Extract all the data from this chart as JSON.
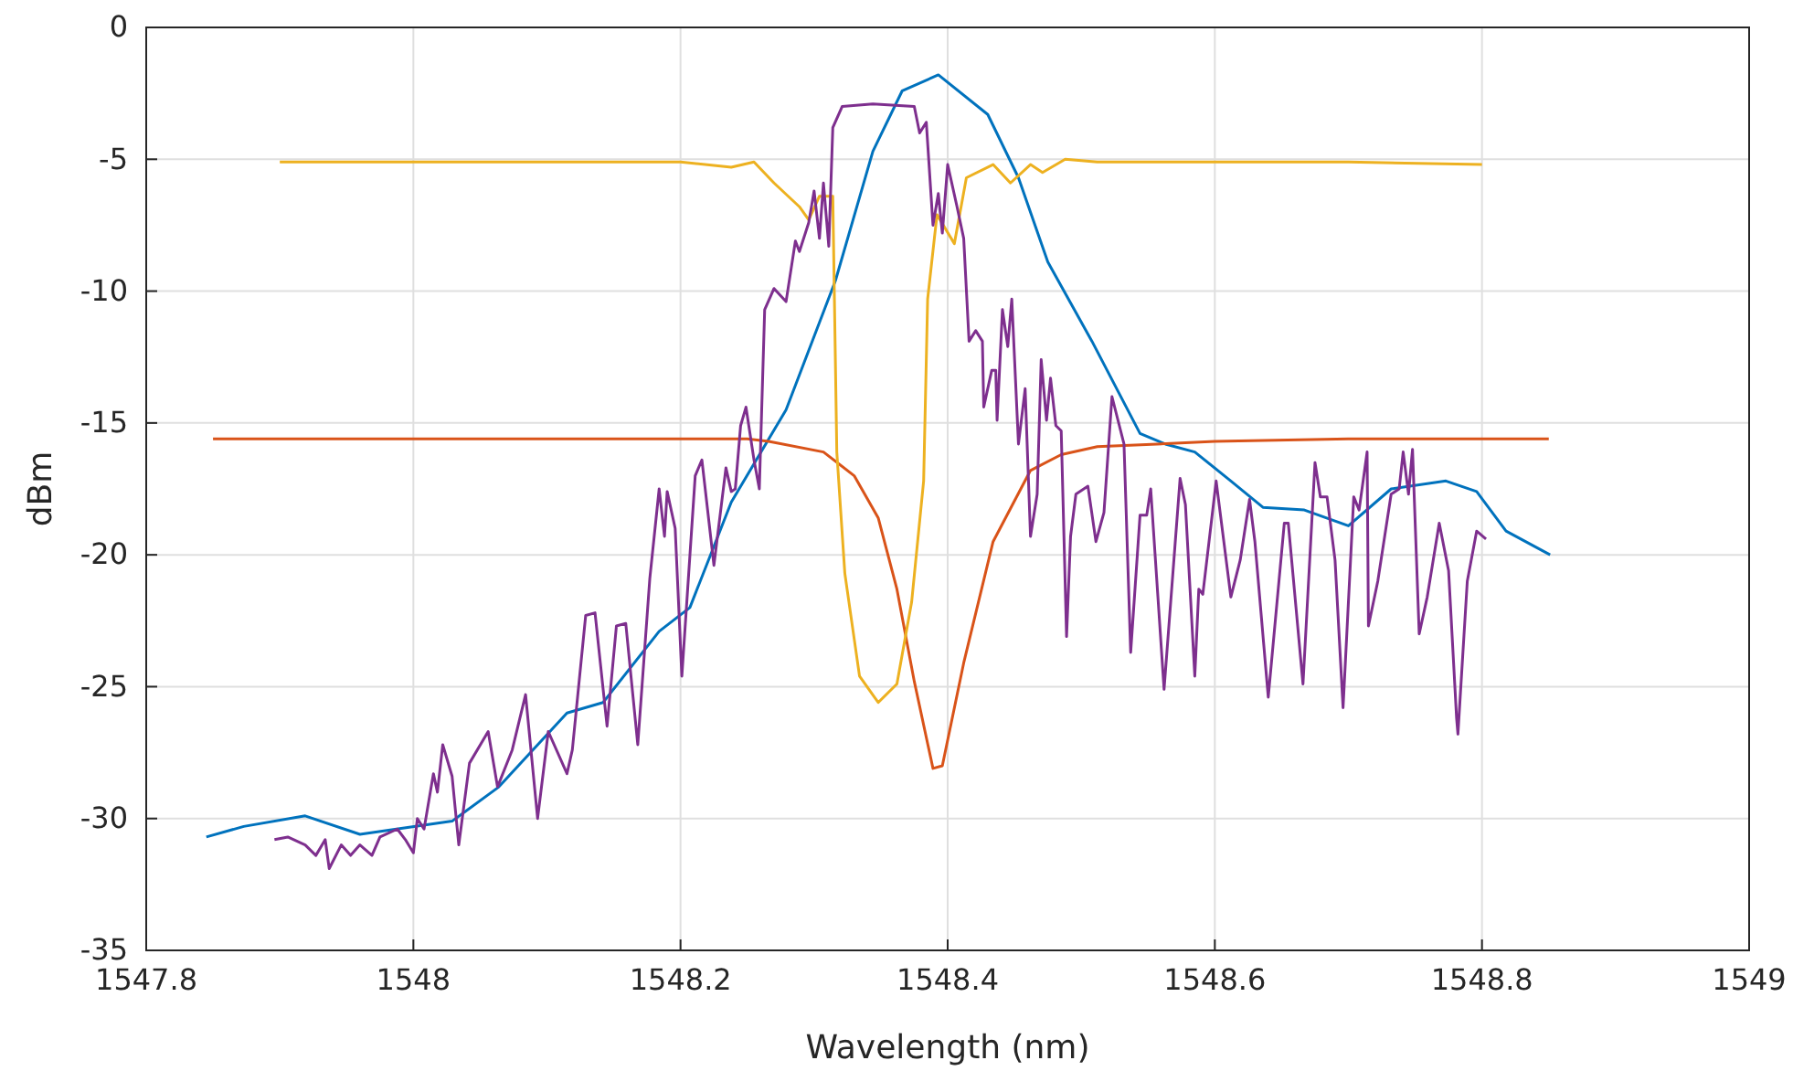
{
  "chart_data": {
    "type": "line",
    "xlabel": "Wavelength (nm)",
    "ylabel": "dBm",
    "xlim": [
      1547.8,
      1549
    ],
    "xticks": [
      1547.8,
      1548,
      1548.2,
      1548.4,
      1548.6,
      1548.8,
      1549
    ],
    "ylim": [
      -35,
      0
    ],
    "yticks": [
      -35,
      -30,
      -25,
      -20,
      -15,
      -10,
      -5,
      0
    ],
    "grid": true,
    "marker": "none",
    "line_style": "solid",
    "series": [
      {
        "color": "#0072bd",
        "x": [
          1547.845,
          1547.873,
          1547.919,
          1547.96,
          1548.029,
          1548.064,
          1548.115,
          1548.142,
          1548.184,
          1548.207,
          1548.238,
          1548.279,
          1548.316,
          1548.344,
          1548.366,
          1548.393,
          1548.43,
          1548.453,
          1548.475,
          1548.508,
          1548.544,
          1548.563,
          1548.585,
          1548.612,
          1548.636,
          1548.667,
          1548.7,
          1548.732,
          1548.773,
          1548.796,
          1548.818,
          1548.851
        ],
        "values": [
          -30.7,
          -30.3,
          -29.9,
          -30.6,
          -30.1,
          -28.8,
          -26.0,
          -25.6,
          -22.9,
          -22.0,
          -18.0,
          -14.5,
          -9.6,
          -4.7,
          -2.4,
          -1.8,
          -3.3,
          -5.7,
          -8.9,
          -11.9,
          -15.4,
          -15.8,
          -16.1,
          -17.2,
          -18.2,
          -18.3,
          -18.9,
          -17.5,
          -17.2,
          -17.6,
          -19.1,
          -20.0
        ]
      },
      {
        "color": "#d95319",
        "x": [
          1547.85,
          1547.95,
          1548.05,
          1548.15,
          1548.25,
          1548.266,
          1548.307,
          1548.33,
          1548.348,
          1548.362,
          1548.375,
          1548.389,
          1548.396,
          1548.412,
          1548.434,
          1548.462,
          1548.485,
          1548.512,
          1548.6,
          1548.7,
          1548.8,
          1548.85
        ],
        "values": [
          -15.6,
          -15.6,
          -15.6,
          -15.6,
          -15.6,
          -15.7,
          -16.1,
          -17.0,
          -18.6,
          -21.3,
          -24.8,
          -28.1,
          -28.0,
          -24.1,
          -19.5,
          -16.8,
          -16.2,
          -15.9,
          -15.7,
          -15.6,
          -15.6,
          -15.6
        ]
      },
      {
        "color": "#edb120",
        "x": [
          1547.9,
          1548.0,
          1548.1,
          1548.2,
          1548.238,
          1548.255,
          1548.27,
          1548.289,
          1548.296,
          1548.304,
          1548.314,
          1548.317,
          1548.323,
          1548.334,
          1548.348,
          1548.362,
          1548.373,
          1548.382,
          1548.385,
          1548.392,
          1548.405,
          1548.414,
          1548.434,
          1548.447,
          1548.462,
          1548.471,
          1548.488,
          1548.512,
          1548.6,
          1548.7,
          1548.8
        ],
        "values": [
          -5.1,
          -5.1,
          -5.1,
          -5.1,
          -5.3,
          -5.1,
          -5.9,
          -6.8,
          -7.3,
          -6.4,
          -6.4,
          -16.1,
          -20.7,
          -24.6,
          -25.6,
          -24.9,
          -21.8,
          -17.2,
          -10.3,
          -7.1,
          -8.2,
          -5.7,
          -5.2,
          -5.9,
          -5.2,
          -5.5,
          -5.0,
          -5.1,
          -5.1,
          -5.1,
          -5.2
        ]
      },
      {
        "color": "#7e2f8e",
        "x": [
          1547.896,
          1547.906,
          1547.919,
          1547.927,
          1547.934,
          1547.937,
          1547.946,
          1547.953,
          1547.96,
          1547.969,
          1547.975,
          1547.988,
          1547.994,
          1548.0,
          1548.003,
          1548.008,
          1548.015,
          1548.018,
          1548.022,
          1548.029,
          1548.034,
          1548.042,
          1548.056,
          1548.063,
          1548.074,
          1548.084,
          1548.093,
          1548.101,
          1548.115,
          1548.119,
          1548.129,
          1548.136,
          1548.145,
          1548.152,
          1548.159,
          1548.168,
          1548.177,
          1548.184,
          1548.188,
          1548.19,
          1548.196,
          1548.201,
          1548.211,
          1548.216,
          1548.225,
          1548.234,
          1548.238,
          1548.241,
          1548.245,
          1548.249,
          1548.255,
          1548.259,
          1548.263,
          1548.27,
          1548.279,
          1548.286,
          1548.289,
          1548.296,
          1548.3,
          1548.304,
          1548.307,
          1548.311,
          1548.314,
          1548.321,
          1548.344,
          1548.375,
          1548.379,
          1548.384,
          1548.389,
          1548.393,
          1548.396,
          1548.4,
          1548.407,
          1548.412,
          1548.416,
          1548.421,
          1548.426,
          1548.427,
          1548.433,
          1548.436,
          1548.437,
          1548.441,
          1548.445,
          1548.448,
          1548.453,
          1548.458,
          1548.462,
          1548.467,
          1548.47,
          1548.474,
          1548.477,
          1548.481,
          1548.485,
          1548.489,
          1548.492,
          1548.496,
          1548.505,
          1548.511,
          1548.517,
          1548.523,
          1548.532,
          1548.537,
          1548.544,
          1548.549,
          1548.552,
          1548.562,
          1548.574,
          1548.578,
          1548.585,
          1548.588,
          1548.591,
          1548.601,
          1548.612,
          1548.619,
          1548.626,
          1548.63,
          1548.64,
          1548.652,
          1548.655,
          1548.666,
          1548.675,
          1548.679,
          1548.684,
          1548.69,
          1548.696,
          1548.704,
          1548.708,
          1548.714,
          1548.715,
          1548.722,
          1548.732,
          1548.738,
          1548.741,
          1548.745,
          1548.748,
          1548.753,
          1548.759,
          1548.768,
          1548.775,
          1548.781,
          1548.782,
          1548.789,
          1548.796,
          1548.803
        ],
        "values": [
          -30.8,
          -30.7,
          -31.0,
          -31.4,
          -30.8,
          -31.9,
          -31.0,
          -31.4,
          -31.0,
          -31.4,
          -30.7,
          -30.4,
          -30.8,
          -31.3,
          -30.0,
          -30.4,
          -28.3,
          -29.0,
          -27.2,
          -28.4,
          -31.0,
          -27.9,
          -26.7,
          -28.8,
          -27.4,
          -25.3,
          -30.0,
          -26.7,
          -28.3,
          -27.4,
          -22.3,
          -22.2,
          -26.5,
          -22.7,
          -22.6,
          -27.2,
          -20.9,
          -17.5,
          -19.3,
          -17.6,
          -19.0,
          -24.6,
          -17.0,
          -16.4,
          -20.4,
          -16.7,
          -17.6,
          -17.5,
          -15.1,
          -14.4,
          -16.4,
          -17.5,
          -10.7,
          -9.9,
          -10.4,
          -8.1,
          -8.5,
          -7.4,
          -6.2,
          -8.0,
          -5.9,
          -8.3,
          -3.8,
          -3.0,
          -2.9,
          -3.0,
          -4.0,
          -3.6,
          -7.5,
          -6.3,
          -7.8,
          -5.2,
          -6.8,
          -8.0,
          -11.9,
          -11.5,
          -11.9,
          -14.4,
          -13.0,
          -13.0,
          -14.9,
          -10.7,
          -12.1,
          -10.3,
          -15.8,
          -13.7,
          -19.3,
          -17.7,
          -12.6,
          -14.9,
          -13.3,
          -15.1,
          -15.3,
          -23.1,
          -19.3,
          -17.7,
          -17.4,
          -19.5,
          -18.4,
          -14.0,
          -15.8,
          -23.7,
          -18.5,
          -18.5,
          -17.5,
          -25.1,
          -17.1,
          -18.1,
          -24.6,
          -21.3,
          -21.5,
          -17.2,
          -21.6,
          -20.2,
          -17.9,
          -19.5,
          -25.4,
          -18.8,
          -18.8,
          -24.9,
          -16.5,
          -17.8,
          -17.8,
          -20.2,
          -25.8,
          -17.8,
          -18.3,
          -16.1,
          -22.7,
          -21.0,
          -17.7,
          -17.5,
          -16.1,
          -17.7,
          -16.0,
          -23.0,
          -21.6,
          -18.8,
          -20.6,
          -26.2,
          -26.8,
          -21.0,
          -19.1,
          -19.4
        ]
      }
    ]
  }
}
